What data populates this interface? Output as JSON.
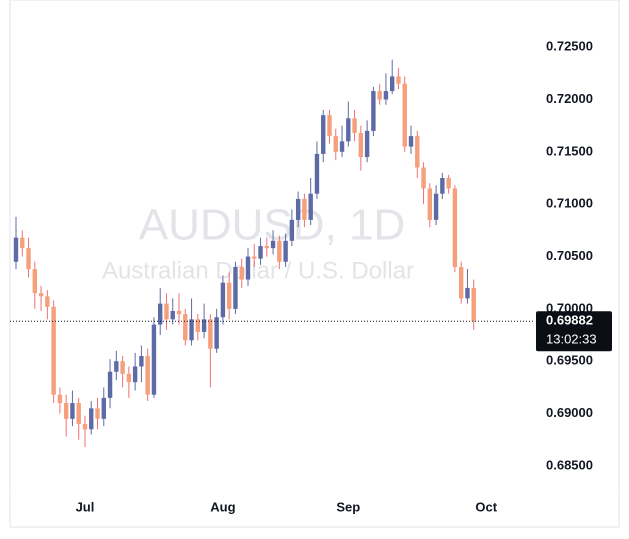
{
  "chart_data": {
    "type": "candlestick",
    "watermark_title": "AUDUSD, 1D",
    "watermark_subtitle": "Australian Dollar / U.S. Dollar",
    "categories": [
      null,
      null,
      null,
      null,
      null,
      null,
      null,
      null,
      null,
      null,
      null,
      "Jul",
      null,
      null,
      null,
      null,
      null,
      null,
      null,
      null,
      null,
      null,
      null,
      null,
      null,
      null,
      null,
      null,
      null,
      null,
      null,
      null,
      null,
      "Aug",
      null,
      null,
      null,
      null,
      null,
      null,
      null,
      null,
      null,
      null,
      null,
      null,
      null,
      null,
      null,
      null,
      null,
      null,
      null,
      "Sep",
      null,
      null,
      null,
      null,
      null,
      null,
      null,
      null,
      null,
      null,
      null,
      null,
      null,
      null,
      null,
      null,
      null,
      null,
      null,
      null,
      null,
      "Oct"
    ],
    "open": [
      0.7045,
      0.7068,
      0.7058,
      0.7038,
      0.7015,
      0.7012,
      0.7002,
      0.6918,
      0.691,
      0.6895,
      0.691,
      0.689,
      0.6885,
      0.6905,
      0.6895,
      0.6915,
      0.694,
      0.695,
      0.6938,
      0.693,
      0.6945,
      0.6955,
      0.6918,
      0.6985,
      0.7005,
      0.699,
      0.6998,
      0.6995,
      0.697,
      0.699,
      0.6978,
      0.699,
      0.6962,
      0.6992,
      0.7025,
      0.7,
      0.704,
      0.7028,
      0.705,
      0.7048,
      0.706,
      0.7058,
      0.7065,
      0.7045,
      0.7065,
      0.7085,
      0.7105,
      0.7085,
      0.711,
      0.7148,
      0.7185,
      0.7165,
      0.715,
      0.716,
      0.7182,
      0.7168,
      0.7145,
      0.717,
      0.7208,
      0.72,
      0.7208,
      0.7222,
      0.7215,
      0.7155,
      0.7165,
      0.7135,
      0.7115,
      0.7085,
      0.711,
      0.7125,
      0.7115,
      0.704,
      0.701,
      0.702,
      null,
      null
    ],
    "high": [
      0.7088,
      0.7075,
      0.7068,
      0.7045,
      0.7022,
      0.7018,
      0.7008,
      0.6925,
      0.6918,
      0.6922,
      0.6915,
      0.6898,
      0.6912,
      0.6915,
      0.6925,
      0.6952,
      0.696,
      0.6955,
      0.6945,
      0.6958,
      0.6965,
      0.6962,
      0.6992,
      0.702,
      0.7015,
      0.701,
      0.7015,
      0.7,
      0.701,
      0.6995,
      0.7005,
      0.6995,
      0.7,
      0.7032,
      0.7035,
      0.7045,
      0.7048,
      0.7058,
      0.7062,
      0.7068,
      0.7068,
      0.7075,
      0.707,
      0.7072,
      0.7095,
      0.7112,
      0.711,
      0.7125,
      0.716,
      0.719,
      0.719,
      0.7172,
      0.7175,
      0.7198,
      0.719,
      0.7175,
      0.718,
      0.7212,
      0.7215,
      0.7225,
      0.7238,
      0.723,
      0.7222,
      0.7175,
      0.717,
      0.714,
      0.712,
      0.7118,
      0.713,
      0.7128,
      0.7118,
      0.7045,
      0.7038,
      0.7028,
      null,
      null
    ],
    "low": [
      0.7038,
      0.705,
      0.703,
      0.7,
      0.6998,
      0.699,
      0.691,
      0.69,
      0.6878,
      0.6888,
      0.6875,
      0.6868,
      0.688,
      0.6885,
      0.6888,
      0.6905,
      0.6932,
      0.6925,
      0.6915,
      0.6922,
      0.693,
      0.6912,
      0.6915,
      0.6975,
      0.698,
      0.6985,
      0.6985,
      0.6965,
      0.6965,
      0.697,
      0.6972,
      0.6925,
      0.6958,
      0.6985,
      0.699,
      0.6995,
      0.702,
      0.7022,
      0.704,
      0.7042,
      0.705,
      0.7052,
      0.7038,
      0.704,
      0.706,
      0.7078,
      0.7078,
      0.708,
      0.7105,
      0.714,
      0.7158,
      0.7142,
      0.7145,
      0.7155,
      0.716,
      0.7132,
      0.714,
      0.7165,
      0.7195,
      0.7195,
      0.7205,
      0.721,
      0.715,
      0.7148,
      0.7125,
      0.71,
      0.7078,
      0.708,
      0.7105,
      0.711,
      0.7035,
      0.7005,
      0.7005,
      0.698,
      null,
      null
    ],
    "close": [
      0.7068,
      0.7058,
      0.7038,
      0.7015,
      0.7012,
      0.7002,
      0.6918,
      0.691,
      0.6895,
      0.691,
      0.689,
      0.6885,
      0.6905,
      0.6895,
      0.6915,
      0.694,
      0.695,
      0.6938,
      0.693,
      0.6945,
      0.6955,
      0.6918,
      0.6985,
      0.7005,
      0.699,
      0.6998,
      0.6995,
      0.697,
      0.699,
      0.6978,
      0.699,
      0.6962,
      0.6992,
      0.7025,
      0.7,
      0.704,
      0.7028,
      0.705,
      0.7048,
      0.706,
      0.7058,
      0.7065,
      0.7045,
      0.7065,
      0.7085,
      0.7105,
      0.7085,
      0.711,
      0.7148,
      0.7185,
      0.7165,
      0.715,
      0.716,
      0.7182,
      0.7168,
      0.7145,
      0.717,
      0.7208,
      0.72,
      0.7208,
      0.7222,
      0.7215,
      0.7155,
      0.7165,
      0.7135,
      0.7115,
      0.7085,
      0.711,
      0.7125,
      0.7115,
      0.704,
      0.701,
      0.702,
      0.69882,
      null,
      null
    ],
    "up_color": "#5d6aa6",
    "down_color": "#f5a07a",
    "down_wick_color": "#f26f6f",
    "last_price": 0.69882,
    "countdown": "13:02:33",
    "ylim": [
      0.6827,
      0.7295
    ],
    "yticks": [
      {
        "value": 0.685,
        "label": "0.68500"
      },
      {
        "value": 0.69,
        "label": "0.69000"
      },
      {
        "value": 0.695,
        "label": "0.69500"
      },
      {
        "value": 0.7,
        "label": "0.70000"
      },
      {
        "value": 0.705,
        "label": "0.70500"
      },
      {
        "value": 0.71,
        "label": "0.71000"
      },
      {
        "value": 0.715,
        "label": "0.71500"
      },
      {
        "value": 0.72,
        "label": "0.72000"
      },
      {
        "value": 0.725,
        "label": "0.72500"
      }
    ],
    "grid": false
  }
}
